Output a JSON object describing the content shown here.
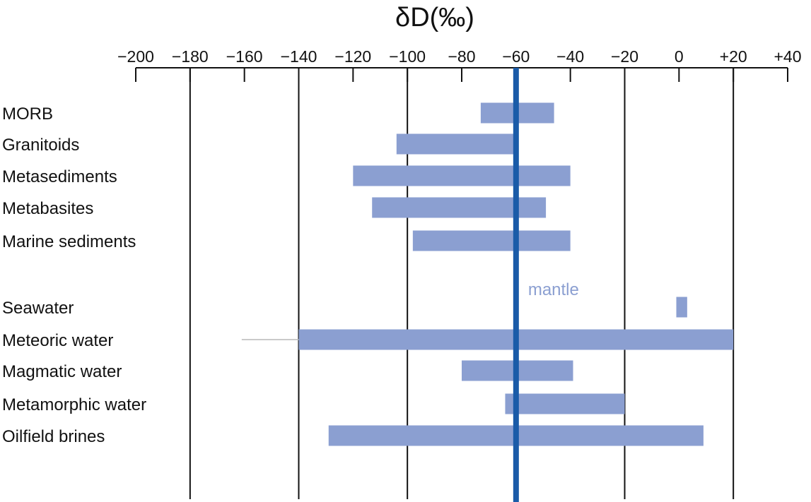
{
  "chart_data": {
    "type": "bar",
    "orientation": "horizontal-range",
    "title": "δD(‰)",
    "x_ticks": [
      "−200",
      "−180",
      "−160",
      "−140",
      "−120",
      "−100",
      "−80",
      "−60",
      "−40",
      "−20",
      "0",
      "+20",
      "+40"
    ],
    "xlim": [
      -200,
      40
    ],
    "axis_position": "top",
    "grid": "vertical lines at selected ticks",
    "gridlines_at": [
      -180,
      -140,
      -100,
      -60,
      -20,
      20
    ],
    "categories": [
      "MORB",
      "Granitoids",
      "Metasediments",
      "Metabasites",
      "Marine sediments",
      "Seawater",
      "Meteoric water",
      "Magmatic water",
      "Metamorphic water",
      "Oilfield brines"
    ],
    "group_break_after": "Marine sediments",
    "ranges": [
      {
        "category": "MORB",
        "min": -73,
        "max": -46
      },
      {
        "category": "Granitoids",
        "min": -104,
        "max": -60
      },
      {
        "category": "Metasediments",
        "min": -120,
        "max": -40
      },
      {
        "category": "Metabasites",
        "min": -113,
        "max": -49
      },
      {
        "category": "Marine sediments",
        "min": -98,
        "max": -40
      },
      {
        "category": "Seawater",
        "min": -1,
        "max": 3
      },
      {
        "category": "Meteoric water",
        "min": -140,
        "max": 20
      },
      {
        "category": "Magmatic water",
        "min": -80,
        "max": -39
      },
      {
        "category": "Metamorphic water",
        "min": -64,
        "max": -20
      },
      {
        "category": "Oilfield brines",
        "min": -129,
        "max": 9
      }
    ],
    "meteoric_tail_min": -161,
    "reference_line": {
      "value": -60,
      "label": "mantle"
    },
    "colors": {
      "bar": "#8b9fd1",
      "reference": "#1a5ba8",
      "grid": "#111111",
      "tail": "#b8b8b8"
    }
  }
}
